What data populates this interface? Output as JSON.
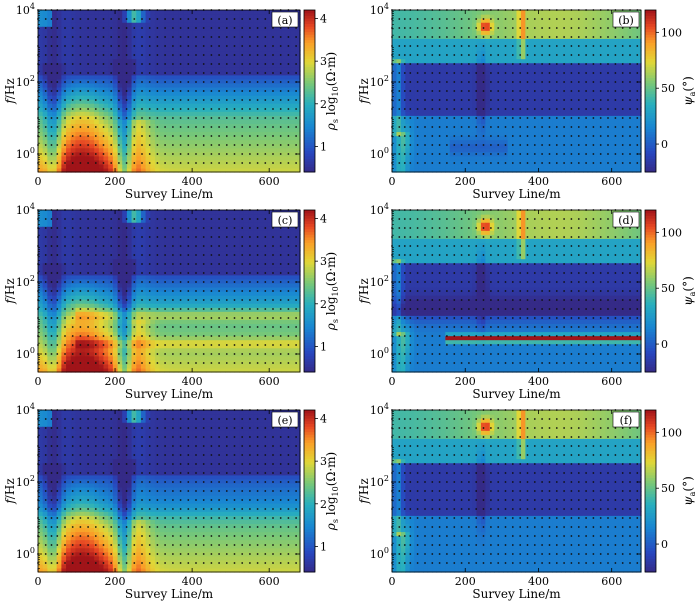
{
  "chart_data": [
    {
      "type": "heatmap",
      "panel_label": "(a)",
      "quantity": "apparent resistivity",
      "cmap": "jet",
      "xlabel": "Survey Line/m",
      "ylabel_italic": "f",
      "ylabel_rest": "/Hz",
      "xticks": [
        "0",
        "200",
        "400",
        "600"
      ],
      "xlim": [
        0,
        680
      ],
      "ylim_log10": [
        -0.5,
        4
      ],
      "yticks": [
        {
          "base": "10",
          "exp": "0"
        },
        {
          "base": "10",
          "exp": "2"
        },
        {
          "base": "10",
          "exp": "4"
        }
      ],
      "colorbar": {
        "ticks": [
          "1",
          "2",
          "3",
          "4"
        ],
        "range": [
          0.4,
          4.2
        ],
        "label": "ρs log10(Ω·m)",
        "label_sym": "ρ",
        "label_sub": "s",
        "label_mid": " log",
        "label_sub2": "10",
        "label_end": "(Ω·m)"
      },
      "stations_m": [
        0,
        20,
        35,
        50,
        70,
        90,
        110,
        130,
        150,
        170,
        190,
        210,
        230,
        250,
        270,
        290,
        310,
        330,
        350,
        370,
        390,
        410,
        430,
        450,
        470,
        490,
        510,
        530,
        550,
        570,
        590,
        610,
        630,
        650,
        670
      ],
      "freq_log10": [
        4,
        3.75,
        3.5,
        3.25,
        3,
        2.75,
        2.5,
        2.25,
        2,
        1.75,
        1.5,
        1.25,
        1,
        0.75,
        0.5,
        0.25,
        0,
        -0.25
      ]
    },
    {
      "type": "heatmap",
      "panel_label": "(b)",
      "quantity": "impedance phase",
      "cmap": "jet",
      "xlabel": "Survey Line/m",
      "ylabel_italic": "f",
      "ylabel_rest": "/Hz",
      "xticks": [
        "0",
        "200",
        "400",
        "600"
      ],
      "xlim": [
        0,
        680
      ],
      "ylim_log10": [
        -0.5,
        4
      ],
      "yticks": [
        {
          "base": "10",
          "exp": "0"
        },
        {
          "base": "10",
          "exp": "2"
        },
        {
          "base": "10",
          "exp": "4"
        }
      ],
      "colorbar": {
        "ticks": [
          "0",
          "50",
          "100"
        ],
        "range": [
          -25,
          120
        ],
        "label": "ψa(°)",
        "label_sym": "ψ",
        "label_sub": "a",
        "label_end": "(°)"
      },
      "stations_m": [
        0,
        20,
        35,
        50,
        70,
        90,
        110,
        130,
        150,
        170,
        190,
        210,
        230,
        250,
        270,
        290,
        310,
        330,
        350,
        370,
        390,
        410,
        430,
        450,
        470,
        490,
        510,
        530,
        550,
        570,
        590,
        610,
        630,
        650,
        670
      ],
      "freq_log10": [
        4,
        3.75,
        3.5,
        3.25,
        3,
        2.75,
        2.5,
        2.25,
        2,
        1.75,
        1.5,
        1.25,
        1,
        0.75,
        0.5,
        0.25,
        0,
        -0.25
      ]
    },
    {
      "type": "heatmap",
      "panel_label": "(c)",
      "quantity": "apparent resistivity",
      "cmap": "jet",
      "xlabel": "Survey Line/m",
      "ylabel_italic": "f",
      "ylabel_rest": "/Hz",
      "xticks": [
        "0",
        "200",
        "400",
        "600"
      ],
      "xlim": [
        0,
        680
      ],
      "ylim_log10": [
        -0.5,
        4
      ],
      "yticks": [
        {
          "base": "10",
          "exp": "0"
        },
        {
          "base": "10",
          "exp": "2"
        },
        {
          "base": "10",
          "exp": "4"
        }
      ],
      "colorbar": {
        "ticks": [
          "1",
          "2",
          "3",
          "4"
        ],
        "range": [
          0.4,
          4.2
        ],
        "label": "ρs log10(Ω·m)",
        "label_sym": "ρ",
        "label_sub": "s",
        "label_mid": " log",
        "label_sub2": "10",
        "label_end": "(Ω·m)"
      },
      "stations_m": [
        0,
        20,
        35,
        50,
        70,
        90,
        110,
        130,
        150,
        170,
        190,
        210,
        230,
        250,
        270,
        290,
        310,
        330,
        350,
        370,
        390,
        410,
        430,
        450,
        470,
        490,
        510,
        530,
        550,
        570,
        590,
        610,
        630,
        650,
        670
      ],
      "freq_log10": [
        4,
        3.75,
        3.5,
        3.25,
        3,
        2.75,
        2.5,
        2.25,
        2,
        1.75,
        1.5,
        1.25,
        1,
        0.75,
        0.5,
        0.25,
        0,
        -0.25
      ]
    },
    {
      "type": "heatmap",
      "panel_label": "(d)",
      "quantity": "impedance phase",
      "cmap": "jet",
      "xlabel": "Survey Line/m",
      "ylabel_italic": "f",
      "ylabel_rest": "/Hz",
      "xticks": [
        "0",
        "200",
        "400",
        "600"
      ],
      "xlim": [
        0,
        680
      ],
      "ylim_log10": [
        -0.5,
        4
      ],
      "yticks": [
        {
          "base": "10",
          "exp": "0"
        },
        {
          "base": "10",
          "exp": "2"
        },
        {
          "base": "10",
          "exp": "4"
        }
      ],
      "colorbar": {
        "ticks": [
          "0",
          "50",
          "100"
        ],
        "range": [
          -25,
          120
        ],
        "label": "ψa(°)",
        "label_sym": "ψ",
        "label_sub": "a",
        "label_end": "(°)"
      },
      "stations_m": [
        0,
        20,
        35,
        50,
        70,
        90,
        110,
        130,
        150,
        170,
        190,
        210,
        230,
        250,
        270,
        290,
        310,
        330,
        350,
        370,
        390,
        410,
        430,
        450,
        470,
        490,
        510,
        530,
        550,
        570,
        590,
        610,
        630,
        650,
        670
      ],
      "freq_log10": [
        4,
        3.75,
        3.5,
        3.25,
        3,
        2.75,
        2.5,
        2.25,
        2,
        1.75,
        1.5,
        1.25,
        1,
        0.75,
        0.5,
        0.25,
        0,
        -0.25
      ]
    },
    {
      "type": "heatmap",
      "panel_label": "(e)",
      "quantity": "apparent resistivity",
      "cmap": "jet",
      "xlabel": "Survey Line/m",
      "ylabel_italic": "f",
      "ylabel_rest": "/Hz",
      "xticks": [
        "0",
        "200",
        "400",
        "600"
      ],
      "xlim": [
        0,
        680
      ],
      "ylim_log10": [
        -0.5,
        4
      ],
      "yticks": [
        {
          "base": "10",
          "exp": "0"
        },
        {
          "base": "10",
          "exp": "2"
        },
        {
          "base": "10",
          "exp": "4"
        }
      ],
      "colorbar": {
        "ticks": [
          "1",
          "2",
          "3",
          "4"
        ],
        "range": [
          0.4,
          4.2
        ],
        "label": "ρs log10(Ω·m)",
        "label_sym": "ρ",
        "label_sub": "s",
        "label_mid": " log",
        "label_sub2": "10",
        "label_end": "(Ω·m)"
      },
      "stations_m": [
        0,
        20,
        35,
        50,
        70,
        90,
        110,
        130,
        150,
        170,
        190,
        210,
        230,
        250,
        270,
        290,
        310,
        330,
        350,
        370,
        390,
        410,
        430,
        450,
        470,
        490,
        510,
        530,
        550,
        570,
        590,
        610,
        630,
        650,
        670
      ],
      "freq_log10": [
        4,
        3.75,
        3.5,
        3.25,
        3,
        2.75,
        2.5,
        2.25,
        2,
        1.75,
        1.5,
        1.25,
        1,
        0.75,
        0.5,
        0.25,
        0,
        -0.25
      ]
    },
    {
      "type": "heatmap",
      "panel_label": "(f)",
      "quantity": "impedance phase",
      "cmap": "jet",
      "xlabel": "Survey Line/m",
      "ylabel_italic": "f",
      "ylabel_rest": "/Hz",
      "xticks": [
        "0",
        "200",
        "400",
        "600"
      ],
      "xlim": [
        0,
        680
      ],
      "ylim_log10": [
        -0.5,
        4
      ],
      "yticks": [
        {
          "base": "10",
          "exp": "0"
        },
        {
          "base": "10",
          "exp": "2"
        },
        {
          "base": "10",
          "exp": "4"
        }
      ],
      "colorbar": {
        "ticks": [
          "0",
          "50",
          "100"
        ],
        "range": [
          -25,
          120
        ],
        "label": "ψa(°)",
        "label_sym": "ψ",
        "label_sub": "a",
        "label_end": "(°)"
      },
      "stations_m": [
        0,
        20,
        35,
        50,
        70,
        90,
        110,
        130,
        150,
        170,
        190,
        210,
        230,
        250,
        270,
        290,
        310,
        330,
        350,
        370,
        390,
        410,
        430,
        450,
        470,
        490,
        510,
        530,
        550,
        570,
        590,
        610,
        630,
        650,
        670
      ],
      "freq_log10": [
        4,
        3.75,
        3.5,
        3.25,
        3,
        2.75,
        2.5,
        2.25,
        2,
        1.75,
        1.5,
        1.25,
        1,
        0.75,
        0.5,
        0.25,
        0,
        -0.25
      ]
    }
  ]
}
